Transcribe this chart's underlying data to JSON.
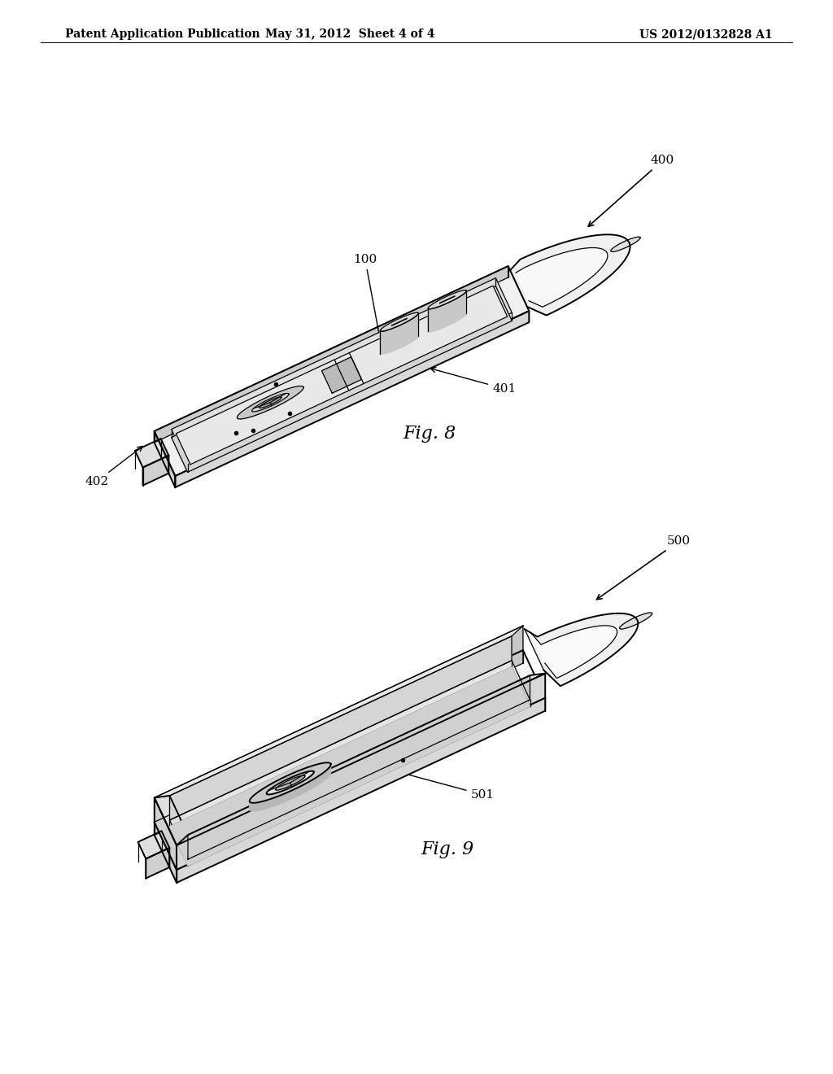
{
  "bg_color": "#ffffff",
  "header_left": "Patent Application Publication",
  "header_mid": "May 31, 2012  Sheet 4 of 4",
  "header_right": "US 2012/0132828 A1",
  "line_color": "#000000",
  "label_fontsize": 11,
  "fig_label_fontsize": 16
}
